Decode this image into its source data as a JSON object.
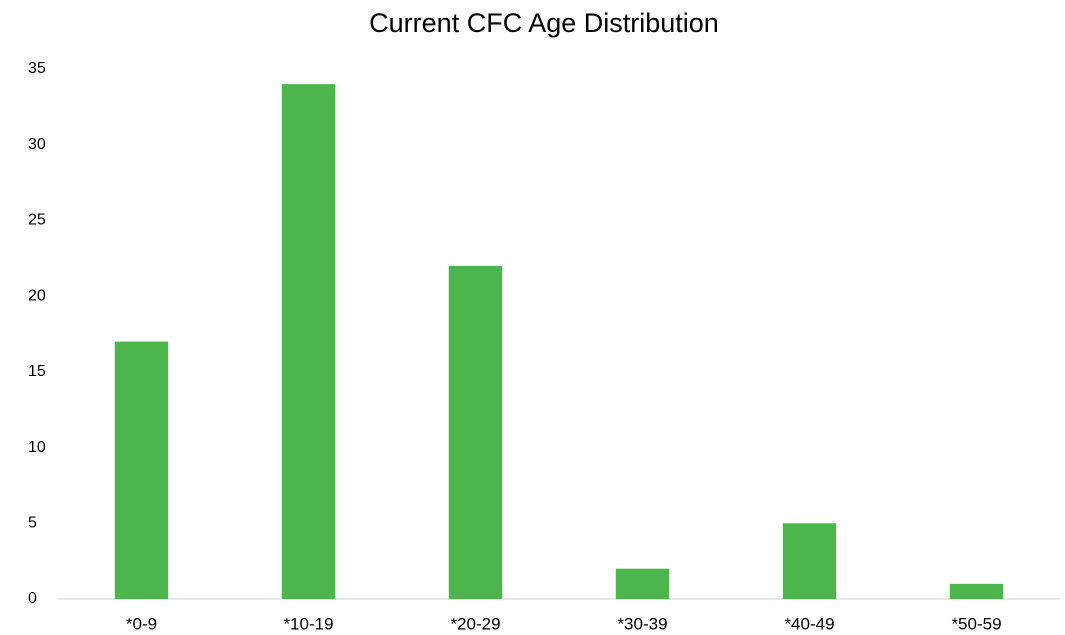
{
  "chart_data": {
    "type": "bar",
    "title": "Current CFC Age Distribution",
    "categories": [
      "*0-9",
      "*10-19",
      "*20-29",
      "*30-39",
      "*40-49",
      "*50-59"
    ],
    "values": [
      17,
      34,
      22,
      2,
      5,
      1
    ],
    "color": "#4cb54c",
    "ylim": [
      0,
      35
    ],
    "yticks": [
      0,
      5,
      10,
      15,
      20,
      25,
      30,
      35
    ],
    "grid": false
  }
}
